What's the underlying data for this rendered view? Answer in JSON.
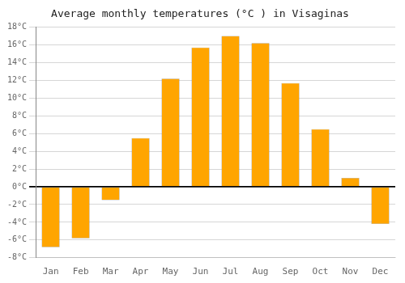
{
  "chart_data": {
    "type": "bar",
    "title": "Average monthly temperatures (°C ) in Visaginas",
    "categories": [
      "Jan",
      "Feb",
      "Mar",
      "Apr",
      "May",
      "Jun",
      "Jul",
      "Aug",
      "Sep",
      "Oct",
      "Nov",
      "Dec"
    ],
    "values": [
      -6.8,
      -5.8,
      -1.5,
      5.5,
      12.2,
      15.7,
      17.0,
      16.2,
      11.7,
      6.5,
      1.0,
      -4.2
    ],
    "color": "#FFA500",
    "ylim": [
      -8,
      18
    ],
    "yticks": [
      {
        "value": -8,
        "label": "-8°C"
      },
      {
        "value": -6,
        "label": "-6°C"
      },
      {
        "value": -4,
        "label": "-4°C"
      },
      {
        "value": -2,
        "label": "-2°C"
      },
      {
        "value": 0,
        "label": "0°C"
      },
      {
        "value": 2,
        "label": "2°C"
      },
      {
        "value": 4,
        "label": "4°C"
      },
      {
        "value": 6,
        "label": "6°C"
      },
      {
        "value": 8,
        "label": "8°C"
      },
      {
        "value": 10,
        "label": "10°C"
      },
      {
        "value": 12,
        "label": "12°C"
      },
      {
        "value": 14,
        "label": "14°C"
      },
      {
        "value": 16,
        "label": "16°C"
      },
      {
        "value": 18,
        "label": "18°C"
      }
    ],
    "grid": true
  }
}
